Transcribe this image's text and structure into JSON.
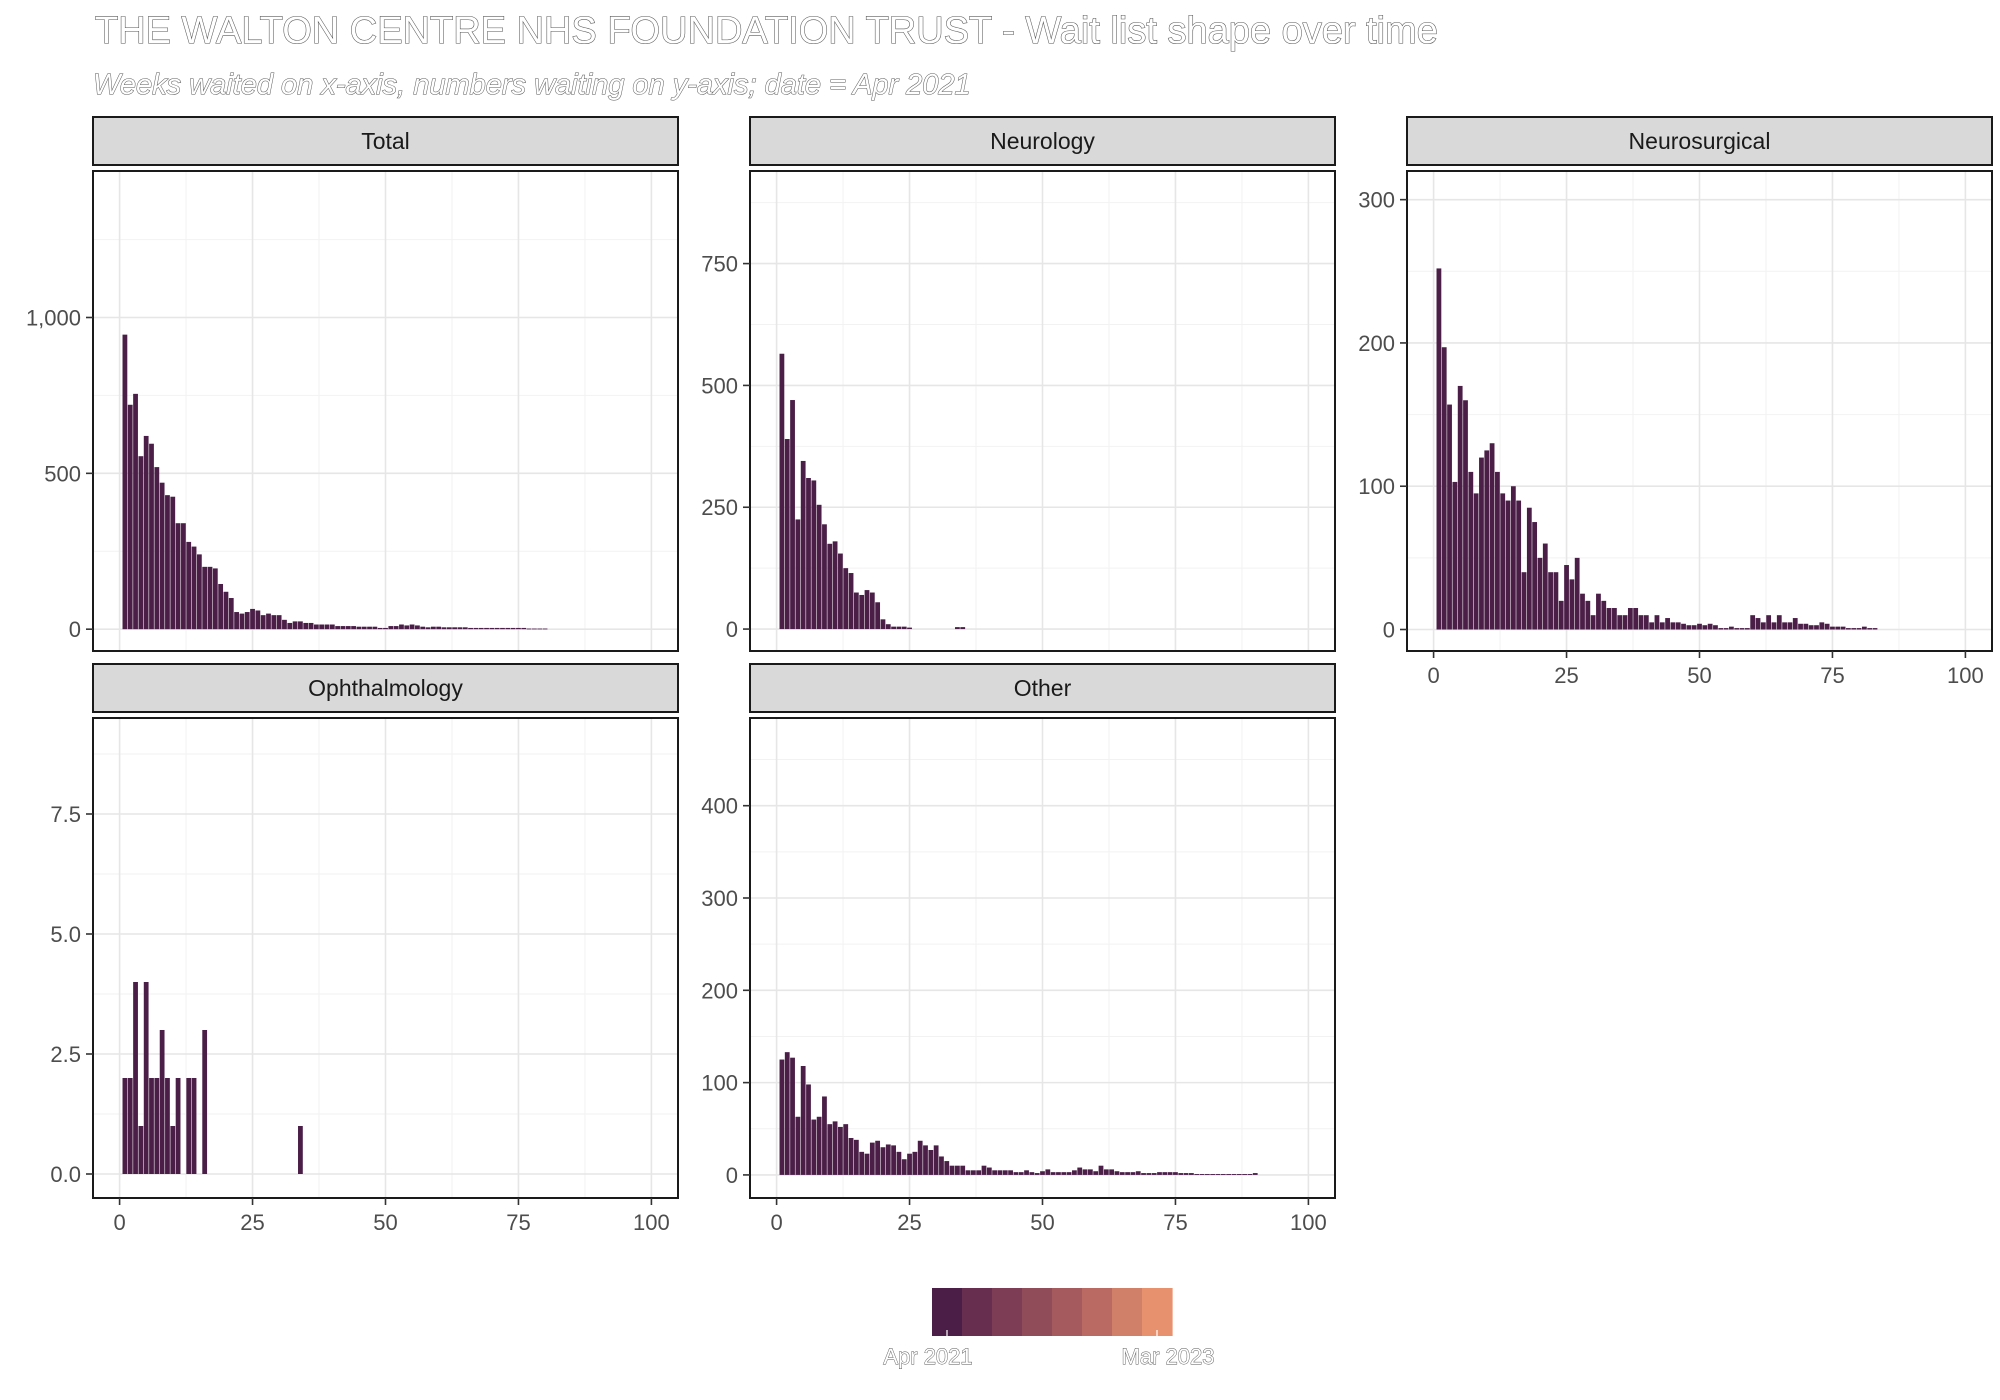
{
  "title": "THE WALTON CENTRE NHS FOUNDATION TRUST - Wait list shape over time",
  "subtitle": "Weeks waited on x-axis, numbers waiting on y-axis; date = Apr 2021",
  "bar_color": "#4B1E48",
  "strip_color": "#D9D9D9",
  "legend": {
    "colors": [
      "#4B1E48",
      "#672E50",
      "#7C3D55",
      "#914C5A",
      "#A55B5E",
      "#BA6A62",
      "#D07F68",
      "#E8916E"
    ],
    "start_label": "Apr 2021",
    "end_label": "Mar 2023"
  },
  "chart_data": [
    {
      "type": "bar",
      "panel": "Total",
      "xlabel": "",
      "ylabel": "",
      "xlim": [
        -5,
        105
      ],
      "x_ticks": [
        "0",
        "25",
        "50",
        "75",
        "100"
      ],
      "ylim": [
        -70,
        1470
      ],
      "y_ticks": [
        0,
        500,
        1000
      ],
      "y_tick_labels": [
        "0",
        "500",
        "1,000"
      ],
      "show_x_axis": false,
      "x": [
        1,
        2,
        3,
        4,
        5,
        6,
        7,
        8,
        9,
        10,
        11,
        12,
        13,
        14,
        15,
        16,
        17,
        18,
        19,
        20,
        21,
        22,
        23,
        24,
        25,
        26,
        27,
        28,
        29,
        30,
        31,
        32,
        33,
        34,
        35,
        36,
        37,
        38,
        39,
        40,
        41,
        42,
        43,
        44,
        45,
        46,
        47,
        48,
        49,
        50,
        51,
        52,
        53,
        54,
        55,
        56,
        57,
        58,
        59,
        60,
        61,
        62,
        63,
        64,
        65,
        66,
        67,
        68,
        69,
        70,
        71,
        72,
        73,
        74,
        75,
        76,
        77,
        78,
        79,
        80
      ],
      "values": [
        945,
        720,
        755,
        555,
        620,
        595,
        520,
        470,
        430,
        425,
        340,
        340,
        280,
        265,
        240,
        200,
        200,
        195,
        145,
        120,
        100,
        55,
        50,
        55,
        65,
        60,
        45,
        50,
        45,
        45,
        30,
        20,
        25,
        25,
        20,
        20,
        15,
        15,
        15,
        15,
        10,
        10,
        10,
        10,
        8,
        8,
        8,
        8,
        4,
        4,
        10,
        10,
        15,
        12,
        15,
        12,
        8,
        6,
        8,
        8,
        6,
        6,
        6,
        6,
        6,
        4,
        4,
        4,
        4,
        4,
        4,
        4,
        4,
        4,
        4,
        4,
        2,
        2,
        2,
        2
      ]
    },
    {
      "type": "bar",
      "panel": "Neurology",
      "xlabel": "",
      "ylabel": "",
      "xlim": [
        -5,
        105
      ],
      "x_ticks": [
        "0",
        "25",
        "50",
        "75",
        "100"
      ],
      "ylim": [
        -45,
        940
      ],
      "y_ticks": [
        0,
        250,
        500,
        750
      ],
      "y_tick_labels": [
        "0",
        "250",
        "500",
        "750"
      ],
      "show_x_axis": false,
      "x": [
        1,
        2,
        3,
        4,
        5,
        6,
        7,
        8,
        9,
        10,
        11,
        12,
        13,
        14,
        15,
        16,
        17,
        18,
        19,
        20,
        21,
        22,
        23,
        24,
        25,
        26,
        27,
        28,
        29,
        30,
        31,
        32,
        33,
        34,
        35
      ],
      "values": [
        565,
        390,
        470,
        225,
        345,
        310,
        305,
        255,
        215,
        175,
        180,
        155,
        125,
        115,
        75,
        70,
        80,
        75,
        55,
        20,
        10,
        5,
        5,
        5,
        3,
        0,
        0,
        0,
        0,
        0,
        0,
        0,
        0,
        4,
        4
      ]
    },
    {
      "type": "bar",
      "panel": "Neurosurgical",
      "xlabel": "",
      "ylabel": "",
      "xlim": [
        -5,
        105
      ],
      "x_ticks": [
        "0",
        "25",
        "50",
        "75",
        "100"
      ],
      "ylim": [
        -15,
        320
      ],
      "y_ticks": [
        0,
        100,
        200,
        300
      ],
      "y_tick_labels": [
        "0",
        "100",
        "200",
        "300"
      ],
      "show_x_axis": true,
      "x": [
        1,
        2,
        3,
        4,
        5,
        6,
        7,
        8,
        9,
        10,
        11,
        12,
        13,
        14,
        15,
        16,
        17,
        18,
        19,
        20,
        21,
        22,
        23,
        24,
        25,
        26,
        27,
        28,
        29,
        30,
        31,
        32,
        33,
        34,
        35,
        36,
        37,
        38,
        39,
        40,
        41,
        42,
        43,
        44,
        45,
        46,
        47,
        48,
        49,
        50,
        51,
        52,
        53,
        54,
        55,
        56,
        57,
        58,
        59,
        60,
        61,
        62,
        63,
        64,
        65,
        66,
        67,
        68,
        69,
        70,
        71,
        72,
        73,
        74,
        75,
        76,
        77,
        78,
        79,
        80,
        81,
        82,
        83
      ],
      "values": [
        252,
        197,
        157,
        103,
        170,
        160,
        110,
        95,
        120,
        125,
        130,
        110,
        95,
        90,
        100,
        90,
        40,
        85,
        75,
        50,
        60,
        40,
        40,
        20,
        45,
        35,
        50,
        25,
        20,
        10,
        25,
        20,
        15,
        15,
        10,
        10,
        15,
        15,
        10,
        10,
        5,
        10,
        5,
        8,
        5,
        5,
        4,
        3,
        3,
        4,
        3,
        4,
        3,
        1,
        1,
        2,
        1,
        1,
        1,
        10,
        8,
        5,
        10,
        5,
        10,
        5,
        5,
        8,
        4,
        4,
        3,
        3,
        5,
        4,
        2,
        2,
        2,
        1,
        1,
        1,
        2,
        1,
        1
      ]
    },
    {
      "type": "bar",
      "panel": "Ophthalmology",
      "xlabel": "",
      "ylabel": "",
      "xlim": [
        -5,
        105
      ],
      "x_ticks": [
        "0",
        "25",
        "50",
        "75",
        "100"
      ],
      "ylim": [
        -0.5,
        9.5
      ],
      "y_ticks": [
        0,
        2.5,
        5,
        7.5
      ],
      "y_tick_labels": [
        "0.0",
        "2.5",
        "5.0",
        "7.5"
      ],
      "show_x_axis": true,
      "x": [
        1,
        2,
        3,
        4,
        5,
        6,
        7,
        8,
        9,
        10,
        11,
        12,
        13,
        14,
        15,
        16,
        34
      ],
      "values": [
        2,
        2,
        4,
        1,
        4,
        2,
        2,
        3,
        2,
        1,
        2,
        0,
        2,
        2,
        0,
        3,
        1
      ]
    },
    {
      "type": "bar",
      "panel": "Other",
      "xlabel": "",
      "ylabel": "",
      "xlim": [
        -5,
        105
      ],
      "x_ticks": [
        "0",
        "25",
        "50",
        "75",
        "100"
      ],
      "ylim": [
        -25,
        495
      ],
      "y_ticks": [
        0,
        100,
        200,
        300,
        400
      ],
      "y_tick_labels": [
        "0",
        "100",
        "200",
        "300",
        "400"
      ],
      "show_x_axis": true,
      "x": [
        1,
        2,
        3,
        4,
        5,
        6,
        7,
        8,
        9,
        10,
        11,
        12,
        13,
        14,
        15,
        16,
        17,
        18,
        19,
        20,
        21,
        22,
        23,
        24,
        25,
        26,
        27,
        28,
        29,
        30,
        31,
        32,
        33,
        34,
        35,
        36,
        37,
        38,
        39,
        40,
        41,
        42,
        43,
        44,
        45,
        46,
        47,
        48,
        49,
        50,
        51,
        52,
        53,
        54,
        55,
        56,
        57,
        58,
        59,
        60,
        61,
        62,
        63,
        64,
        65,
        66,
        67,
        68,
        69,
        70,
        71,
        72,
        73,
        74,
        75,
        76,
        77,
        78,
        79,
        80,
        81,
        82,
        83,
        84,
        85,
        86,
        87,
        88,
        89,
        90
      ],
      "values": [
        125,
        133,
        127,
        63,
        118,
        98,
        60,
        63,
        85,
        55,
        58,
        52,
        55,
        40,
        38,
        25,
        23,
        35,
        37,
        30,
        33,
        32,
        25,
        17,
        23,
        25,
        37,
        32,
        27,
        32,
        20,
        15,
        10,
        10,
        10,
        5,
        5,
        5,
        10,
        8,
        5,
        5,
        5,
        5,
        3,
        3,
        5,
        3,
        2,
        4,
        6,
        3,
        3,
        3,
        3,
        5,
        8,
        6,
        6,
        4,
        10,
        6,
        6,
        4,
        3,
        3,
        3,
        4,
        2,
        2,
        2,
        3,
        3,
        3,
        3,
        2,
        2,
        2,
        1,
        1,
        1,
        1,
        1,
        1,
        1,
        1,
        1,
        1,
        1,
        2
      ]
    }
  ]
}
